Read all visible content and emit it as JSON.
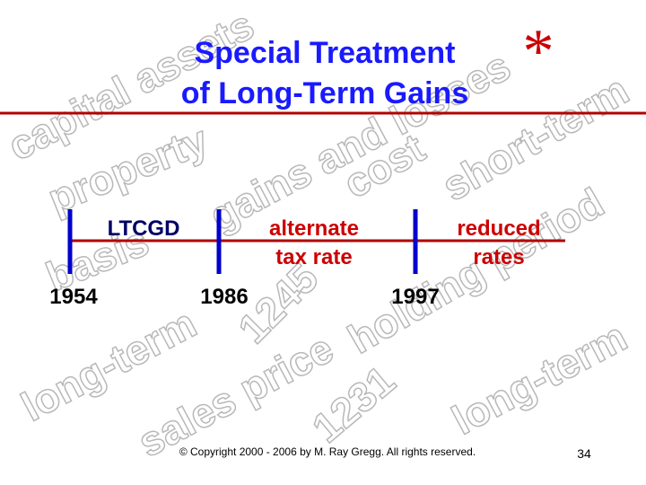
{
  "slide": {
    "title": [
      "Special Treatment",
      "of Long-Term Gains"
    ],
    "asterisk": "*",
    "watermarks": [
      "capital assets",
      "property",
      "gains and losses",
      "short-term",
      "basis",
      "cost",
      "1245",
      "holding period",
      "long-term",
      "sales price",
      "1231",
      "long-term"
    ],
    "timeline": [
      {
        "label": [
          "LTCGD"
        ],
        "year": "1954"
      },
      {
        "label": [
          "alternate",
          "tax rate"
        ],
        "year": "1986"
      },
      {
        "label": [
          "reduced",
          "rates"
        ],
        "year": "1997"
      }
    ],
    "copyright": "© Copyright 2000 - 2006 by M. Ray Gregg.  All rights reserved.",
    "page_number": "34"
  }
}
